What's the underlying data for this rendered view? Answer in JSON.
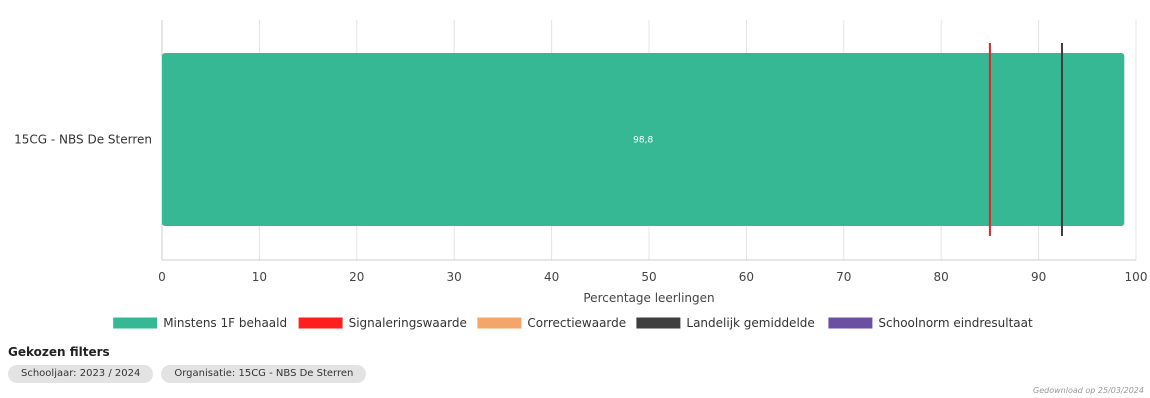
{
  "chart_data": {
    "type": "bar",
    "orientation": "horizontal",
    "categories": [
      "15CG - NBS De Sterren"
    ],
    "series": [
      {
        "name": "Minstens 1F behaald",
        "values": [
          98.8
        ],
        "color": "#36b894"
      }
    ],
    "data_labels": [
      "98,8"
    ],
    "reference_lines": [
      {
        "name": "Signaleringswaarde",
        "value": 85,
        "color": "#e02424"
      },
      {
        "name": "Landelijk gemiddelde",
        "value": 92.4,
        "color": "#3d3d3d"
      }
    ],
    "legend": [
      {
        "label": "Minstens 1F behaald",
        "color": "#36b894"
      },
      {
        "label": "Signaleringswaarde",
        "color": "#ff1f1f"
      },
      {
        "label": "Correctiewaarde",
        "color": "#f4a66a"
      },
      {
        "label": "Landelijk gemiddelde",
        "color": "#3f3f3f"
      },
      {
        "label": "Schoolnorm eindresultaat",
        "color": "#6a4fa3"
      }
    ],
    "xlabel": "Percentage leerlingen",
    "xlim": [
      0,
      100
    ],
    "xticks": [
      0,
      10,
      20,
      30,
      40,
      50,
      60,
      70,
      80,
      90,
      100
    ],
    "grid": true,
    "legend_position": "bottom"
  },
  "filters": {
    "title": "Gekozen filters",
    "chips": [
      "Schooljaar: 2023 / 2024",
      "Organisatie: 15CG - NBS De Sterren"
    ]
  },
  "download_note": "Gedownload op 25/03/2024"
}
